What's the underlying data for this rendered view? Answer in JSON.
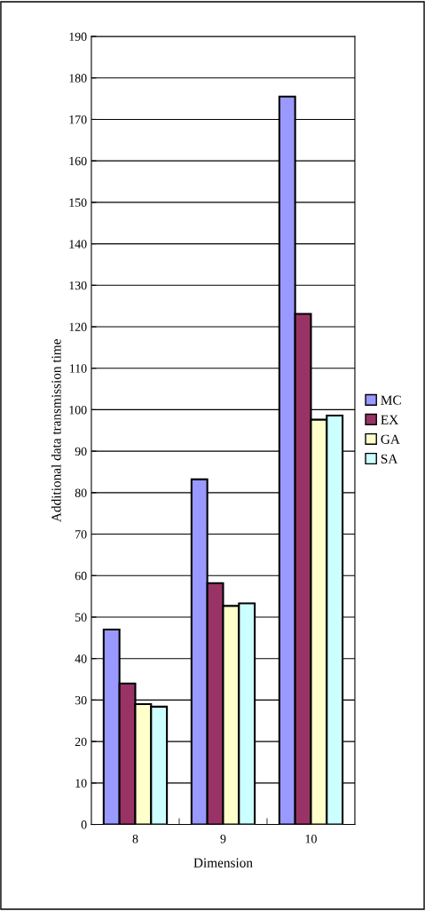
{
  "chart_data": {
    "type": "bar",
    "xlabel": "Dimension",
    "ylabel": "Additional data transmission time",
    "categories": [
      "8",
      "9",
      "10"
    ],
    "series": [
      {
        "name": "MC",
        "color": "#9999ff",
        "values": [
          47,
          83.2,
          175.5
        ]
      },
      {
        "name": "EX",
        "color": "#993366",
        "values": [
          34,
          58.2,
          123.1
        ]
      },
      {
        "name": "GA",
        "color": "#ffffcc",
        "values": [
          29,
          52.7,
          97.6
        ]
      },
      {
        "name": "SA",
        "color": "#ccffff",
        "values": [
          28.4,
          53.3,
          98.6
        ]
      }
    ],
    "ylim": [
      0,
      190
    ],
    "yticks": [
      0,
      10,
      20,
      30,
      40,
      50,
      60,
      70,
      80,
      90,
      100,
      110,
      120,
      130,
      140,
      150,
      160,
      170,
      180,
      190
    ],
    "grid": "y",
    "legend": "right"
  }
}
